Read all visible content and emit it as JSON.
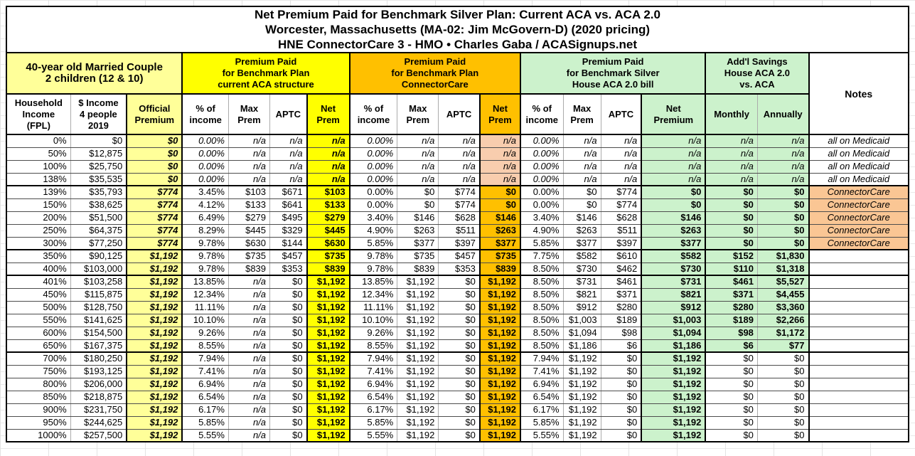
{
  "colors": {
    "pale_yellow": "#FFFF99",
    "bright_yellow": "#FFFF00",
    "amber": "#FFC000",
    "light_green": "#CCF2CC",
    "peach_na": "#F8CDAE",
    "peach_notes": "#FAC694",
    "border": "#000000"
  },
  "chart_data": {
    "type": "table",
    "title": "Net Premium Paid for Benchmark Silver Plan: Current ACA vs. ACA 2.0 — Worcester, Massachusetts (MA-02: Jim McGovern-D) (2020 pricing) — HNE ConnectorCare 3 - HMO • Charles Gaba / ACASignups.net",
    "title_lines": [
      "Net Premium Paid for Benchmark Silver Plan: Current ACA vs. ACA 2.0",
      "Worcester, Massachusetts (MA-02: Jim McGovern-D) (2020 pricing)",
      "HNE ConnectorCare 3 - HMO • Charles Gaba / ACASignups.net"
    ],
    "groups": {
      "couple": "40-year old Married Couple\n2 children (12 & 10)",
      "aca": "Premium Paid\nfor Benchmark Plan\ncurrent ACA structure",
      "connectorcare": "Premium Paid\nfor Benchmark Plan\nConnectorCare",
      "house": "Premium Paid\nfor Benchmark Silver\nHouse ACA 2.0 bill",
      "savings": "Add'l Savings\nHouse ACA 2.0\nvs. ACA",
      "notes": "Notes"
    },
    "column_headers": [
      "Household\nIncome\n(FPL)",
      "$ Income\n4 people\n2019",
      "Official\nPremium",
      "% of\nincome",
      "Max\nPrem",
      "APTC",
      "Net\nPrem",
      "% of\nincome",
      "Max\nPrem",
      "APTC",
      "Net\nPrem",
      "% of\nincome",
      "Max\nPrem",
      "APTC",
      "Net\nPremium",
      "Monthly",
      "Annually"
    ],
    "rows": [
      {
        "fpl": "0%",
        "income": "$0",
        "official": "$0",
        "a_pct": "0.00%",
        "a_max": "n/a",
        "a_aptc": "n/a",
        "a_net": "n/a",
        "c_pct": "0.00%",
        "c_max": "n/a",
        "c_aptc": "n/a",
        "c_net": "n/a",
        "h_pct": "0.00%",
        "h_max": "n/a",
        "h_aptc": "n/a",
        "h_net": "n/a",
        "monthly": "n/a",
        "annually": "n/a",
        "notes": "all on Medicaid"
      },
      {
        "fpl": "50%",
        "income": "$12,875",
        "official": "$0",
        "a_pct": "0.00%",
        "a_max": "n/a",
        "a_aptc": "n/a",
        "a_net": "n/a",
        "c_pct": "0.00%",
        "c_max": "n/a",
        "c_aptc": "n/a",
        "c_net": "n/a",
        "h_pct": "0.00%",
        "h_max": "n/a",
        "h_aptc": "n/a",
        "h_net": "n/a",
        "monthly": "n/a",
        "annually": "n/a",
        "notes": "all on Medicaid"
      },
      {
        "fpl": "100%",
        "income": "$25,750",
        "official": "$0",
        "a_pct": "0.00%",
        "a_max": "n/a",
        "a_aptc": "n/a",
        "a_net": "n/a",
        "c_pct": "0.00%",
        "c_max": "n/a",
        "c_aptc": "n/a",
        "c_net": "n/a",
        "h_pct": "0.00%",
        "h_max": "n/a",
        "h_aptc": "n/a",
        "h_net": "n/a",
        "monthly": "n/a",
        "annually": "n/a",
        "notes": "all on Medicaid"
      },
      {
        "fpl": "138%",
        "income": "$35,535",
        "official": "$0",
        "a_pct": "0.00%",
        "a_max": "n/a",
        "a_aptc": "n/a",
        "a_net": "n/a",
        "c_pct": "0.00%",
        "c_max": "n/a",
        "c_aptc": "n/a",
        "c_net": "n/a",
        "h_pct": "0.00%",
        "h_max": "n/a",
        "h_aptc": "n/a",
        "h_net": "n/a",
        "monthly": "n/a",
        "annually": "n/a",
        "notes": "all on Medicaid"
      },
      {
        "fpl": "139%",
        "income": "$35,793",
        "official": "$774",
        "a_pct": "3.45%",
        "a_max": "$103",
        "a_aptc": "$671",
        "a_net": "$103",
        "c_pct": "0.00%",
        "c_max": "$0",
        "c_aptc": "$774",
        "c_net": "$0",
        "h_pct": "0.00%",
        "h_max": "$0",
        "h_aptc": "$774",
        "h_net": "$0",
        "monthly": "$0",
        "annually": "$0",
        "notes": "ConnectorCare"
      },
      {
        "fpl": "150%",
        "income": "$38,625",
        "official": "$774",
        "a_pct": "4.12%",
        "a_max": "$133",
        "a_aptc": "$641",
        "a_net": "$133",
        "c_pct": "0.00%",
        "c_max": "$0",
        "c_aptc": "$774",
        "c_net": "$0",
        "h_pct": "0.00%",
        "h_max": "$0",
        "h_aptc": "$774",
        "h_net": "$0",
        "monthly": "$0",
        "annually": "$0",
        "notes": "ConnectorCare"
      },
      {
        "fpl": "200%",
        "income": "$51,500",
        "official": "$774",
        "a_pct": "6.49%",
        "a_max": "$279",
        "a_aptc": "$495",
        "a_net": "$279",
        "c_pct": "3.40%",
        "c_max": "$146",
        "c_aptc": "$628",
        "c_net": "$146",
        "h_pct": "3.40%",
        "h_max": "$146",
        "h_aptc": "$628",
        "h_net": "$146",
        "monthly": "$0",
        "annually": "$0",
        "notes": "ConnectorCare"
      },
      {
        "fpl": "250%",
        "income": "$64,375",
        "official": "$774",
        "a_pct": "8.29%",
        "a_max": "$445",
        "a_aptc": "$329",
        "a_net": "$445",
        "c_pct": "4.90%",
        "c_max": "$263",
        "c_aptc": "$511",
        "c_net": "$263",
        "h_pct": "4.90%",
        "h_max": "$263",
        "h_aptc": "$511",
        "h_net": "$263",
        "monthly": "$0",
        "annually": "$0",
        "notes": "ConnectorCare"
      },
      {
        "fpl": "300%",
        "income": "$77,250",
        "official": "$774",
        "a_pct": "9.78%",
        "a_max": "$630",
        "a_aptc": "$144",
        "a_net": "$630",
        "c_pct": "5.85%",
        "c_max": "$377",
        "c_aptc": "$397",
        "c_net": "$377",
        "h_pct": "5.85%",
        "h_max": "$377",
        "h_aptc": "$397",
        "h_net": "$377",
        "monthly": "$0",
        "annually": "$0",
        "notes": "ConnectorCare"
      },
      {
        "fpl": "350%",
        "income": "$90,125",
        "official": "$1,192",
        "a_pct": "9.78%",
        "a_max": "$735",
        "a_aptc": "$457",
        "a_net": "$735",
        "c_pct": "9.78%",
        "c_max": "$735",
        "c_aptc": "$457",
        "c_net": "$735",
        "h_pct": "7.75%",
        "h_max": "$582",
        "h_aptc": "$610",
        "h_net": "$582",
        "monthly": "$152",
        "annually": "$1,830",
        "notes": ""
      },
      {
        "fpl": "400%",
        "income": "$103,000",
        "official": "$1,192",
        "a_pct": "9.78%",
        "a_max": "$839",
        "a_aptc": "$353",
        "a_net": "$839",
        "c_pct": "9.78%",
        "c_max": "$839",
        "c_aptc": "$353",
        "c_net": "$839",
        "h_pct": "8.50%",
        "h_max": "$730",
        "h_aptc": "$462",
        "h_net": "$730",
        "monthly": "$110",
        "annually": "$1,318",
        "notes": ""
      },
      {
        "fpl": "401%",
        "income": "$103,258",
        "official": "$1,192",
        "a_pct": "13.85%",
        "a_max": "n/a",
        "a_aptc": "$0",
        "a_net": "$1,192",
        "c_pct": "13.85%",
        "c_max": "$1,192",
        "c_aptc": "$0",
        "c_net": "$1,192",
        "h_pct": "8.50%",
        "h_max": "$731",
        "h_aptc": "$461",
        "h_net": "$731",
        "monthly": "$461",
        "annually": "$5,527",
        "notes": ""
      },
      {
        "fpl": "450%",
        "income": "$115,875",
        "official": "$1,192",
        "a_pct": "12.34%",
        "a_max": "n/a",
        "a_aptc": "$0",
        "a_net": "$1,192",
        "c_pct": "12.34%",
        "c_max": "$1,192",
        "c_aptc": "$0",
        "c_net": "$1,192",
        "h_pct": "8.50%",
        "h_max": "$821",
        "h_aptc": "$371",
        "h_net": "$821",
        "monthly": "$371",
        "annually": "$4,455",
        "notes": ""
      },
      {
        "fpl": "500%",
        "income": "$128,750",
        "official": "$1,192",
        "a_pct": "11.11%",
        "a_max": "n/a",
        "a_aptc": "$0",
        "a_net": "$1,192",
        "c_pct": "11.11%",
        "c_max": "$1,192",
        "c_aptc": "$0",
        "c_net": "$1,192",
        "h_pct": "8.50%",
        "h_max": "$912",
        "h_aptc": "$280",
        "h_net": "$912",
        "monthly": "$280",
        "annually": "$3,360",
        "notes": ""
      },
      {
        "fpl": "550%",
        "income": "$141,625",
        "official": "$1,192",
        "a_pct": "10.10%",
        "a_max": "n/a",
        "a_aptc": "$0",
        "a_net": "$1,192",
        "c_pct": "10.10%",
        "c_max": "$1,192",
        "c_aptc": "$0",
        "c_net": "$1,192",
        "h_pct": "8.50%",
        "h_max": "$1,003",
        "h_aptc": "$189",
        "h_net": "$1,003",
        "monthly": "$189",
        "annually": "$2,266",
        "notes": ""
      },
      {
        "fpl": "600%",
        "income": "$154,500",
        "official": "$1,192",
        "a_pct": "9.26%",
        "a_max": "n/a",
        "a_aptc": "$0",
        "a_net": "$1,192",
        "c_pct": "9.26%",
        "c_max": "$1,192",
        "c_aptc": "$0",
        "c_net": "$1,192",
        "h_pct": "8.50%",
        "h_max": "$1,094",
        "h_aptc": "$98",
        "h_net": "$1,094",
        "monthly": "$98",
        "annually": "$1,172",
        "notes": ""
      },
      {
        "fpl": "650%",
        "income": "$167,375",
        "official": "$1,192",
        "a_pct": "8.55%",
        "a_max": "n/a",
        "a_aptc": "$0",
        "a_net": "$1,192",
        "c_pct": "8.55%",
        "c_max": "$1,192",
        "c_aptc": "$0",
        "c_net": "$1,192",
        "h_pct": "8.50%",
        "h_max": "$1,186",
        "h_aptc": "$6",
        "h_net": "$1,186",
        "monthly": "$6",
        "annually": "$77",
        "notes": ""
      },
      {
        "fpl": "700%",
        "income": "$180,250",
        "official": "$1,192",
        "a_pct": "7.94%",
        "a_max": "n/a",
        "a_aptc": "$0",
        "a_net": "$1,192",
        "c_pct": "7.94%",
        "c_max": "$1,192",
        "c_aptc": "$0",
        "c_net": "$1,192",
        "h_pct": "7.94%",
        "h_max": "$1,192",
        "h_aptc": "$0",
        "h_net": "$1,192",
        "monthly": "$0",
        "annually": "$0",
        "notes": ""
      },
      {
        "fpl": "750%",
        "income": "$193,125",
        "official": "$1,192",
        "a_pct": "7.41%",
        "a_max": "n/a",
        "a_aptc": "$0",
        "a_net": "$1,192",
        "c_pct": "7.41%",
        "c_max": "$1,192",
        "c_aptc": "$0",
        "c_net": "$1,192",
        "h_pct": "7.41%",
        "h_max": "$1,192",
        "h_aptc": "$0",
        "h_net": "$1,192",
        "monthly": "$0",
        "annually": "$0",
        "notes": ""
      },
      {
        "fpl": "800%",
        "income": "$206,000",
        "official": "$1,192",
        "a_pct": "6.94%",
        "a_max": "n/a",
        "a_aptc": "$0",
        "a_net": "$1,192",
        "c_pct": "6.94%",
        "c_max": "$1,192",
        "c_aptc": "$0",
        "c_net": "$1,192",
        "h_pct": "6.94%",
        "h_max": "$1,192",
        "h_aptc": "$0",
        "h_net": "$1,192",
        "monthly": "$0",
        "annually": "$0",
        "notes": ""
      },
      {
        "fpl": "850%",
        "income": "$218,875",
        "official": "$1,192",
        "a_pct": "6.54%",
        "a_max": "n/a",
        "a_aptc": "$0",
        "a_net": "$1,192",
        "c_pct": "6.54%",
        "c_max": "$1,192",
        "c_aptc": "$0",
        "c_net": "$1,192",
        "h_pct": "6.54%",
        "h_max": "$1,192",
        "h_aptc": "$0",
        "h_net": "$1,192",
        "monthly": "$0",
        "annually": "$0",
        "notes": ""
      },
      {
        "fpl": "900%",
        "income": "$231,750",
        "official": "$1,192",
        "a_pct": "6.17%",
        "a_max": "n/a",
        "a_aptc": "$0",
        "a_net": "$1,192",
        "c_pct": "6.17%",
        "c_max": "$1,192",
        "c_aptc": "$0",
        "c_net": "$1,192",
        "h_pct": "6.17%",
        "h_max": "$1,192",
        "h_aptc": "$0",
        "h_net": "$1,192",
        "monthly": "$0",
        "annually": "$0",
        "notes": ""
      },
      {
        "fpl": "950%",
        "income": "$244,625",
        "official": "$1,192",
        "a_pct": "5.85%",
        "a_max": "n/a",
        "a_aptc": "$0",
        "a_net": "$1,192",
        "c_pct": "5.85%",
        "c_max": "$1,192",
        "c_aptc": "$0",
        "c_net": "$1,192",
        "h_pct": "5.85%",
        "h_max": "$1,192",
        "h_aptc": "$0",
        "h_net": "$1,192",
        "monthly": "$0",
        "annually": "$0",
        "notes": ""
      },
      {
        "fpl": "1000%",
        "income": "$257,500",
        "official": "$1,192",
        "a_pct": "5.55%",
        "a_max": "n/a",
        "a_aptc": "$0",
        "a_net": "$1,192",
        "c_pct": "5.55%",
        "c_max": "$1,192",
        "c_aptc": "$0",
        "c_net": "$1,192",
        "h_pct": "5.55%",
        "h_max": "$1,192",
        "h_aptc": "$0",
        "h_net": "$1,192",
        "monthly": "$0",
        "annually": "$0",
        "notes": ""
      }
    ]
  }
}
